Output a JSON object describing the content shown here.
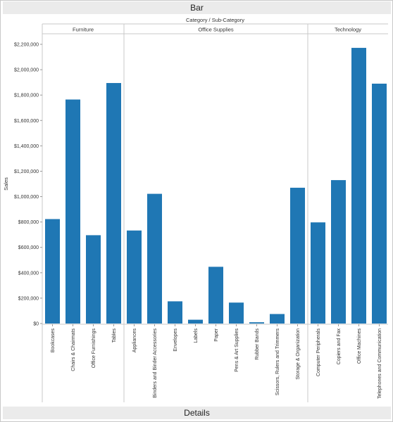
{
  "header": {
    "title": "Bar"
  },
  "footer": {
    "title": "Details"
  },
  "chart_data": {
    "type": "bar",
    "title": "",
    "column_header": "Category  /  Sub-Category",
    "ylabel": "Sales",
    "xlabel": "",
    "ylim": [
      0,
      2200000
    ],
    "yticks": [
      0,
      200000,
      400000,
      600000,
      800000,
      1000000,
      1200000,
      1400000,
      1600000,
      1800000,
      2000000,
      2200000
    ],
    "ytick_labels": [
      "$0",
      "$200,000",
      "$400,000",
      "$600,000",
      "$800,000",
      "$1,000,000",
      "$1,200,000",
      "$1,400,000",
      "$1,600,000",
      "$1,800,000",
      "$2,000,000",
      "$2,200,000"
    ],
    "bar_color": "#1f77b4",
    "grid": false,
    "groups": [
      {
        "name": "Furniture",
        "categories": [
          "Bookcases",
          "Chairs & Chairmats",
          "Office Furnishings",
          "Tables"
        ],
        "values": [
          823000,
          1765000,
          696000,
          1895000
        ]
      },
      {
        "name": "Office Supplies",
        "categories": [
          "Appliances",
          "Binders and Binder Accessories",
          "Envelopes",
          "Labels",
          "Paper",
          "Pens & Art Supplies",
          "Rubber Bands",
          "Scissors, Rulers and Trimmers",
          "Storage & Organization"
        ],
        "values": [
          733000,
          1022000,
          175000,
          30000,
          447000,
          165000,
          10000,
          75000,
          1070000
        ]
      },
      {
        "name": "Technology",
        "categories": [
          "Computer Peripherals",
          "Copiers and Fax",
          "Office Machines",
          "Telephones and Communication"
        ],
        "values": [
          797000,
          1130000,
          2172000,
          1890000
        ]
      }
    ]
  }
}
